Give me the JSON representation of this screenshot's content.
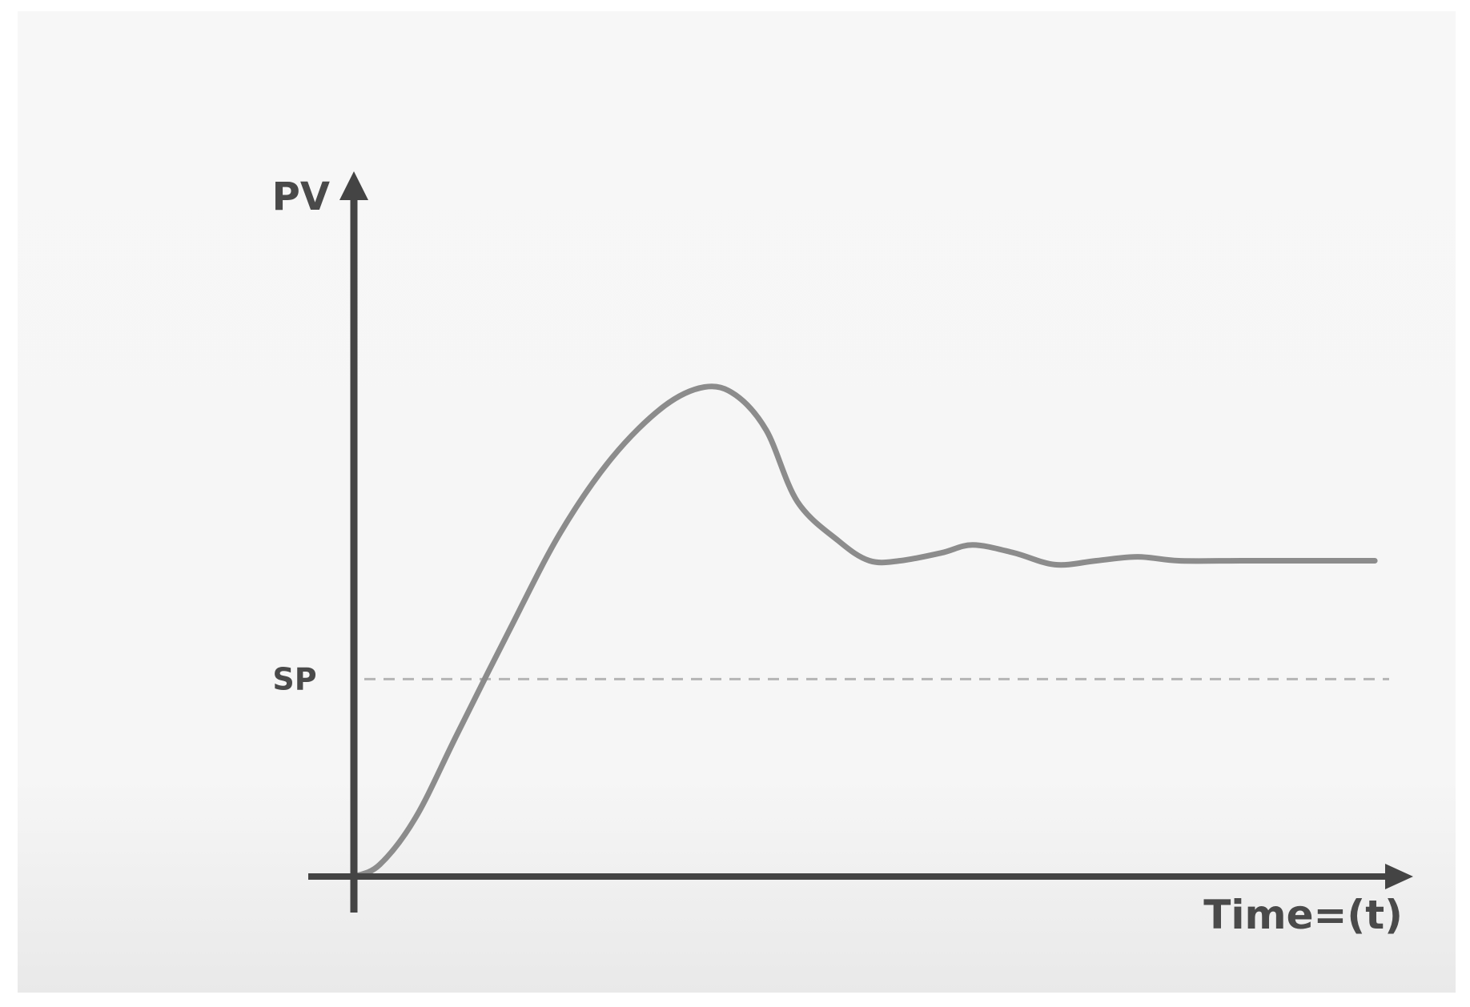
{
  "chart_data": {
    "type": "line",
    "ylabel": "PV",
    "xlabel": "Time=(t)",
    "ylim": [
      0,
      1.75
    ],
    "xlim": [
      0,
      10
    ],
    "grid": false,
    "reference_lines": [
      {
        "label": "SP",
        "y": 0.5,
        "style": "dashed"
      }
    ],
    "series": [
      {
        "x": [
          0,
          0.25,
          0.6,
          1.0,
          1.5,
          2.0,
          2.5,
          3.0,
          3.4,
          3.7,
          4.0,
          4.3,
          4.7,
          5.0,
          5.3,
          5.7,
          6.0,
          6.4,
          6.8,
          7.2,
          7.6,
          8.0,
          8.6,
          9.2,
          9.9
        ],
        "y": [
          0,
          0.03,
          0.15,
          0.36,
          0.62,
          0.87,
          1.06,
          1.19,
          1.24,
          1.22,
          1.13,
          0.95,
          0.85,
          0.8,
          0.8,
          0.82,
          0.84,
          0.82,
          0.79,
          0.8,
          0.81,
          0.8,
          0.8,
          0.8,
          0.8
        ]
      }
    ],
    "colors": {
      "background": "#ffffff",
      "panel": "#f5f5f5",
      "axis": "#444444",
      "curve": "#8c8c8c",
      "setpoint": "#b5b5b5",
      "label": "#4a4a4a"
    }
  }
}
